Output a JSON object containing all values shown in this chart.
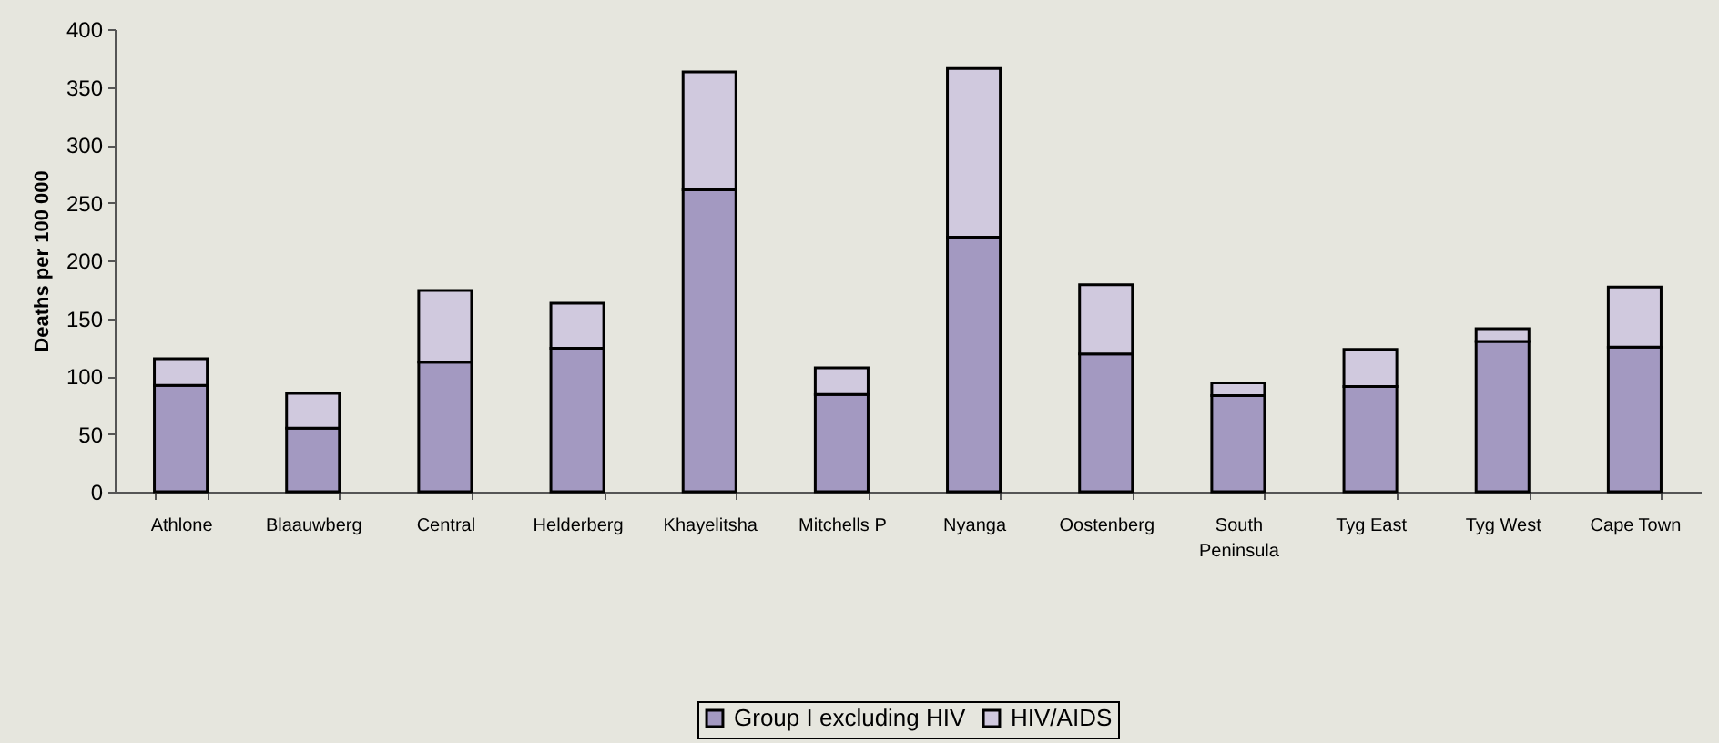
{
  "chart_data": {
    "type": "bar",
    "stacked": true,
    "ylabel": "Deaths per 100 000",
    "categories": [
      "Athlone",
      "Blaauwberg",
      "Central",
      "Helderberg",
      "Khayelitsha",
      "Mitchells P",
      "Nyanga",
      "Oostenberg",
      "South Peninsula",
      "Tyg East",
      "Tyg West",
      "Cape Town"
    ],
    "series": [
      {
        "name": "Group I excluding HIV",
        "color": "#a399c1",
        "values": [
          92,
          55,
          112,
          124,
          261,
          84,
          220,
          119,
          83,
          91,
          130,
          125
        ]
      },
      {
        "name": "HIV/AIDS",
        "color": "#d0c9de",
        "values": [
          23,
          30,
          62,
          39,
          102,
          23,
          146,
          60,
          11,
          32,
          11,
          52
        ]
      }
    ],
    "ylim": [
      0,
      400
    ],
    "yticks": [
      0,
      50,
      100,
      150,
      200,
      250,
      300,
      350,
      400
    ],
    "legend": "bottom"
  }
}
